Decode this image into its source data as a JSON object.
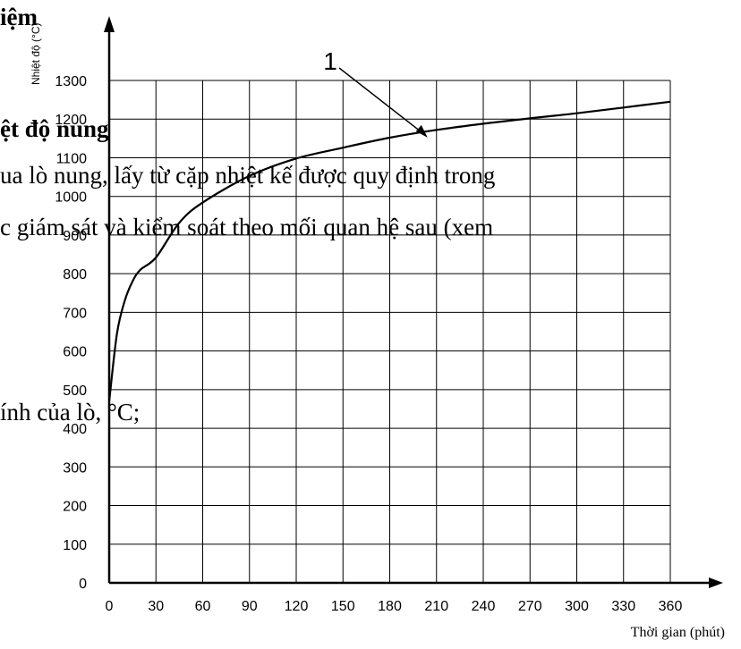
{
  "chart_data": {
    "type": "line",
    "title": "",
    "xlabel": "Thời gian (phút)",
    "ylabel": "Nhiệt độ (°C)",
    "xlim": [
      0,
      360
    ],
    "ylim": [
      0,
      1300
    ],
    "x_ticks": [
      0,
      30,
      60,
      90,
      120,
      150,
      180,
      210,
      240,
      270,
      300,
      330,
      360
    ],
    "y_ticks": [
      0,
      100,
      200,
      300,
      400,
      500,
      600,
      700,
      800,
      900,
      1000,
      1100,
      1200,
      1300
    ],
    "grid": true,
    "series": [
      {
        "name": "",
        "x": [
          0,
          5,
          10,
          15,
          20,
          30,
          45,
          60,
          90,
          120,
          150,
          180,
          210,
          240,
          270,
          300,
          330,
          360
        ],
        "y": [
          470,
          645,
          730,
          780,
          810,
          842,
          932,
          984,
          1053,
          1098,
          1126,
          1152,
          1172,
          1188,
          1202,
          1215,
          1230,
          1245
        ]
      }
    ],
    "annotations": [
      {
        "text": "1",
        "x": 206,
        "y": 1150
      }
    ]
  },
  "overlay": {
    "line1": "iệm",
    "line2": "ệt độ nung",
    "line3": "ua lò nung, lấy từ cặp nhiệt kế được quy định trong",
    "line4": "c giám sát và kiểm soát theo mối quan hệ sau (xem",
    "line5": "ính của lò, °C;"
  }
}
